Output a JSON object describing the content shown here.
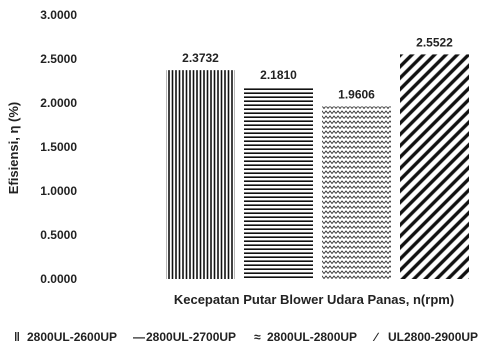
{
  "chart_data": {
    "type": "bar",
    "xlabel": "Kecepatan Putar Blower Udara Panas, n(rpm)",
    "ylabel": "Efisiensi, η (%)",
    "ylim": [
      0,
      3
    ],
    "yticks": [
      "0.0000",
      "0.5000",
      "1.0000",
      "1.5000",
      "2.0000",
      "2.5000",
      "3.0000"
    ],
    "grid": false,
    "legend_position": "bottom",
    "series": [
      {
        "name": "2800UL-2600UP",
        "value": 2.3732,
        "label": "2.3732",
        "pattern": "vertical-lines",
        "legend_symbol": "‖"
      },
      {
        "name": "2800UL-2700UP",
        "value": 2.181,
        "label": "2.1810",
        "pattern": "horizontal-lines",
        "legend_symbol": "—"
      },
      {
        "name": "2800UL-2800UP",
        "value": 1.9606,
        "label": "1.9606",
        "pattern": "zigzag",
        "legend_symbol": "≈"
      },
      {
        "name": "UL2800-2900UP",
        "value": 2.5522,
        "label": "2.5522",
        "pattern": "diagonal-lines",
        "legend_symbol": "∕"
      }
    ],
    "colors": {
      "ink": "#111111",
      "text": "#222222"
    }
  }
}
